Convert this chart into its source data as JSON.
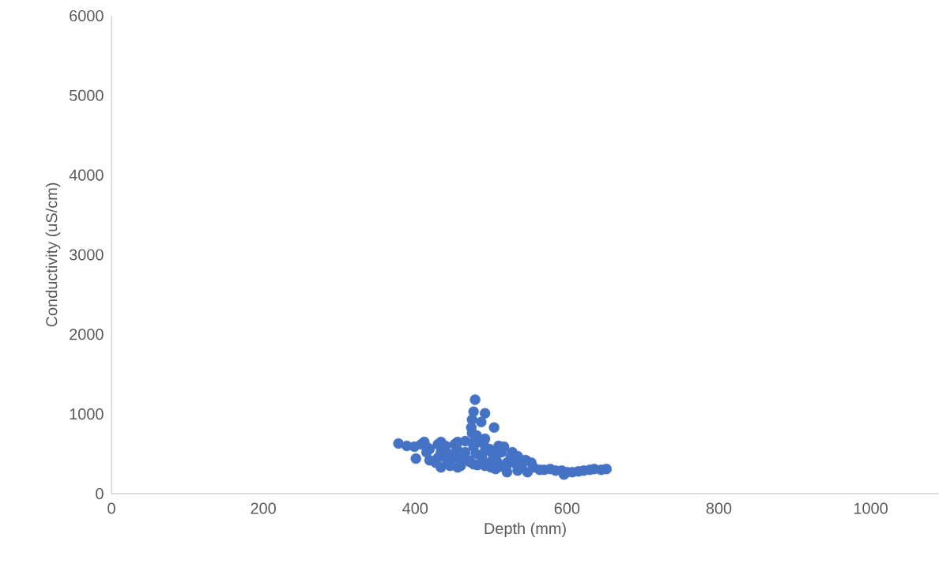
{
  "chart_data": {
    "type": "scatter",
    "xlabel": "Depth (mm)",
    "ylabel": "Conductivity (uS/cm)",
    "xlim": [
      0,
      1090
    ],
    "ylim": [
      0,
      6000
    ],
    "xticks": [
      0,
      200,
      400,
      600,
      800,
      1000
    ],
    "yticks": [
      0,
      1000,
      2000,
      3000,
      4000,
      5000,
      6000
    ],
    "grid": false,
    "legend": false,
    "series": [
      {
        "color": "#4472c4",
        "x": [
          378,
          389,
          399,
          412,
          434,
          456,
          466,
          401,
          419,
          434,
          456,
          477,
          492,
          506,
          521,
          535,
          548,
          564,
          578,
          593,
          596,
          607,
          622,
          636,
          652,
          479,
          477,
          492,
          475,
          487,
          474,
          504,
          475,
          481,
          492,
          510,
          517,
          528,
          535,
          546,
          553,
          419,
          434,
          477,
          492,
          427,
          506,
          521,
          440,
          450,
          470,
          500,
          455,
          498,
          512,
          408,
          416,
          430,
          442,
          446,
          452,
          458,
          472,
          480,
          484,
          502,
          508,
          514,
          520,
          526,
          532,
          540,
          544,
          556,
          570,
          585,
          600,
          615,
          630,
          645,
          444,
          466,
          482,
          490,
          500,
          415,
          430,
          460,
          476,
          488
        ],
        "values": [
          630,
          600,
          590,
          650,
          650,
          650,
          660,
          440,
          420,
          330,
          330,
          370,
          350,
          310,
          270,
          290,
          270,
          300,
          310,
          290,
          240,
          270,
          290,
          310,
          310,
          1180,
          1030,
          1010,
          930,
          900,
          830,
          830,
          760,
          730,
          690,
          600,
          590,
          520,
          470,
          420,
          390,
          560,
          520,
          590,
          540,
          390,
          460,
          390,
          600,
          450,
          420,
          400,
          560,
          560,
          340,
          620,
          580,
          620,
          420,
          350,
          620,
          440,
          400,
          500,
          650,
          500,
          400,
          520,
          340,
          460,
          380,
          340,
          420,
          330,
          300,
          290,
          270,
          280,
          300,
          300,
          500,
          520,
          360,
          630,
          330,
          520,
          450,
          350,
          640,
          450
        ]
      }
    ]
  }
}
